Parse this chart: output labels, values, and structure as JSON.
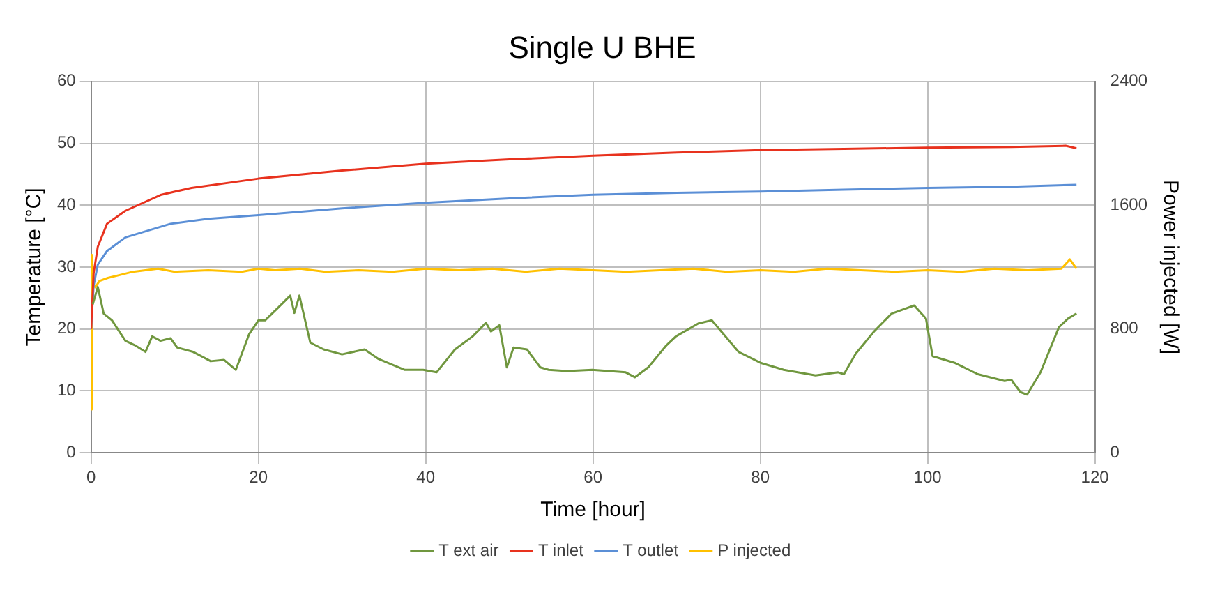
{
  "chart_data": {
    "type": "line",
    "title": "Single U BHE",
    "xlabel": "Time [hour]",
    "ylabel": "Temperature [°C]",
    "y2label": "Power injected [W]",
    "xlim": [
      0,
      120
    ],
    "xticks": [
      0,
      20,
      40,
      60,
      80,
      100,
      120
    ],
    "ylim": [
      0,
      60
    ],
    "yticks": [
      0,
      10,
      20,
      30,
      40,
      50,
      60
    ],
    "y2lim": [
      0,
      2400
    ],
    "y2ticks": [
      0,
      800,
      1600,
      2400
    ],
    "grid": true,
    "legend": "bottom",
    "marker": "none",
    "line_style": "solid",
    "series": [
      {
        "name": "T ext air",
        "color": "#70973f",
        "x": [
          0.2,
          0.8,
          1.5,
          2.5,
          4.1,
          5.2,
          6.5,
          7.3,
          8.3,
          9.5,
          10.3,
          12.2,
          14.3,
          15.9,
          17.3,
          18.9,
          20,
          20.8,
          22.4,
          23.8,
          24.3,
          24.9,
          26.2,
          27.8,
          30,
          32.7,
          34.3,
          37.5,
          39.7,
          41.3,
          43.5,
          45.6,
          47.2,
          47.8,
          48.8,
          49.7,
          50.5,
          52.1,
          53.7,
          54.7,
          56.9,
          59.9,
          63.9,
          65,
          66.6,
          68.8,
          69.9,
          72.6,
          74.2,
          77.4,
          80.1,
          82.8,
          86.6,
          89.3,
          90,
          91.4,
          93.6,
          95.7,
          98.4,
          99.8,
          100.6,
          103.3,
          106,
          109.2,
          110,
          111.1,
          111.9,
          113.5,
          115.7,
          116.8,
          117.8
        ],
        "values": [
          24,
          26.8,
          22.5,
          21.4,
          18.1,
          17.4,
          16.3,
          18.8,
          18.1,
          18.5,
          17,
          16.3,
          14.8,
          15,
          13.4,
          19.2,
          21.4,
          21.4,
          23.5,
          25.4,
          22.6,
          25.4,
          17.8,
          16.7,
          15.9,
          16.7,
          15.2,
          13.4,
          13.4,
          13,
          16.7,
          18.8,
          21,
          19.6,
          20.6,
          13.8,
          17,
          16.7,
          13.8,
          13.4,
          13.2,
          13.4,
          13,
          12.2,
          13.8,
          17.4,
          18.8,
          20.9,
          21.4,
          16.3,
          14.5,
          13.4,
          12.5,
          13,
          12.7,
          16,
          19.6,
          22.5,
          23.8,
          21.7,
          15.6,
          14.5,
          12.7,
          11.6,
          11.8,
          9.8,
          9.4,
          13,
          20.3,
          21.7,
          22.5
        ]
      },
      {
        "name": "T inlet",
        "color": "#e8321e",
        "x": [
          0,
          0.3,
          0.8,
          1.9,
          4.1,
          8.4,
          12,
          20,
          30,
          40,
          50,
          60,
          70,
          80,
          90,
          100,
          110,
          116.5,
          117.8
        ],
        "values": [
          20,
          29,
          33.3,
          37,
          39.1,
          41.7,
          42.8,
          44.3,
          45.6,
          46.7,
          47.4,
          48,
          48.5,
          48.9,
          49.1,
          49.3,
          49.4,
          49.6,
          49.2
        ]
      },
      {
        "name": "T outlet",
        "color": "#5b8fd6",
        "x": [
          0,
          0.3,
          0.8,
          1.9,
          4.1,
          9.5,
          14,
          20,
          30,
          40,
          50,
          60,
          70,
          80,
          90,
          100,
          110,
          117.8
        ],
        "values": [
          20,
          27,
          30.4,
          32.6,
          34.8,
          37,
          37.8,
          38.4,
          39.5,
          40.4,
          41.1,
          41.7,
          42,
          42.2,
          42.5,
          42.8,
          43,
          43.3
        ]
      },
      {
        "name": "P injected",
        "color": "#ffc000",
        "axis": "y2",
        "x": [
          0,
          0.05,
          0.1,
          0.2,
          0.5,
          1,
          2,
          3.5,
          5,
          8,
          10,
          14,
          18,
          20,
          22,
          25,
          28,
          32,
          36,
          40,
          44,
          48,
          52,
          56,
          60,
          64,
          68,
          72,
          76,
          80,
          84,
          88,
          92,
          96,
          100,
          104,
          108,
          112,
          116,
          117,
          117.8
        ],
        "values": [
          280,
          1280,
          900,
          1100,
          1070,
          1110,
          1130,
          1150,
          1170,
          1190,
          1170,
          1180,
          1170,
          1190,
          1180,
          1190,
          1170,
          1180,
          1170,
          1190,
          1180,
          1190,
          1170,
          1190,
          1180,
          1170,
          1180,
          1190,
          1170,
          1180,
          1170,
          1190,
          1180,
          1170,
          1180,
          1170,
          1190,
          1180,
          1190,
          1250,
          1190
        ]
      }
    ]
  }
}
